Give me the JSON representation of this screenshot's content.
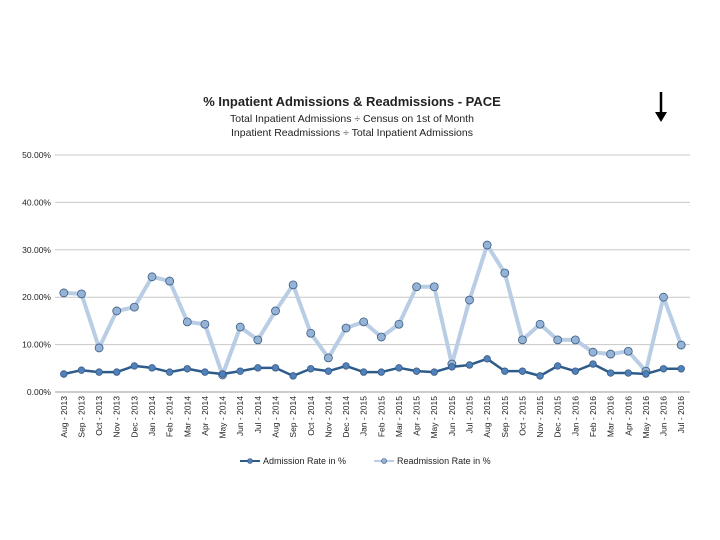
{
  "chart_data": {
    "type": "line",
    "title": "% Inpatient Admissions & Readmissions - PACE",
    "subtitle": [
      "Total Inpatient Admissions ÷ Census on 1st of Month",
      "Inpatient Readmissions ÷ Total Inpatient Admissions"
    ],
    "categories": [
      "Aug - 2013",
      "Sep - 2013",
      "Oct - 2013",
      "Nov - 2013",
      "Dec - 2013",
      "Jan - 2014",
      "Feb - 2014",
      "Mar - 2014",
      "Apr - 2014",
      "May - 2014",
      "Jun - 2014",
      "Jul - 2014",
      "Aug - 2014",
      "Sep - 2014",
      "Oct - 2014",
      "Nov - 2014",
      "Dec - 2014",
      "Jan - 2015",
      "Feb - 2015",
      "Mar - 2015",
      "Apr - 2015",
      "May - 2015",
      "Jun - 2015",
      "Jul - 2015",
      "Aug - 2015",
      "Sep - 2015",
      "Oct - 2015",
      "Nov - 2015",
      "Dec - 2015",
      "Jan - 2016",
      "Feb - 2016",
      "Mar - 2016",
      "Apr - 2016",
      "May - 2016",
      "Jun - 2016",
      "Jul - 2016"
    ],
    "series": [
      {
        "name": "Admission Rate in %",
        "color": "#2e5c8a",
        "marker_color": "#4f81bd",
        "values": [
          3.8,
          4.6,
          4.2,
          4.2,
          5.5,
          5.1,
          4.2,
          4.9,
          4.2,
          3.8,
          4.4,
          5.1,
          5.1,
          3.4,
          4.9,
          4.4,
          5.5,
          4.2,
          4.2,
          5.1,
          4.4,
          4.2,
          5.3,
          5.7,
          7.0,
          4.4,
          4.4,
          3.4,
          5.5,
          4.4,
          5.9,
          4.0,
          4.0,
          3.8,
          4.9,
          4.9
        ]
      },
      {
        "name": "Readmission Rate in %",
        "color": "#b9cde5",
        "marker_color": "#95b3d7",
        "values": [
          20.9,
          20.7,
          9.3,
          17.1,
          17.9,
          24.3,
          23.4,
          14.8,
          14.3,
          3.6,
          13.7,
          11.0,
          17.1,
          22.6,
          12.4,
          7.2,
          13.5,
          14.8,
          11.6,
          14.3,
          22.2,
          22.2,
          5.9,
          19.4,
          31.0,
          25.1,
          11.0,
          14.3,
          11.0,
          11.0,
          8.4,
          8.0,
          8.6,
          4.4,
          20.0,
          9.9
        ]
      }
    ],
    "ylim": [
      0,
      50
    ],
    "yticks": [
      {
        "value": 0,
        "label": "0.00%"
      },
      {
        "value": 10,
        "label": "10.00%"
      },
      {
        "value": 20,
        "label": "20.00%"
      },
      {
        "value": 30,
        "label": "30.00%"
      },
      {
        "value": 40,
        "label": "40.00%"
      },
      {
        "value": 50,
        "label": "50.00%"
      }
    ],
    "grid": true,
    "legend": "bottom"
  }
}
